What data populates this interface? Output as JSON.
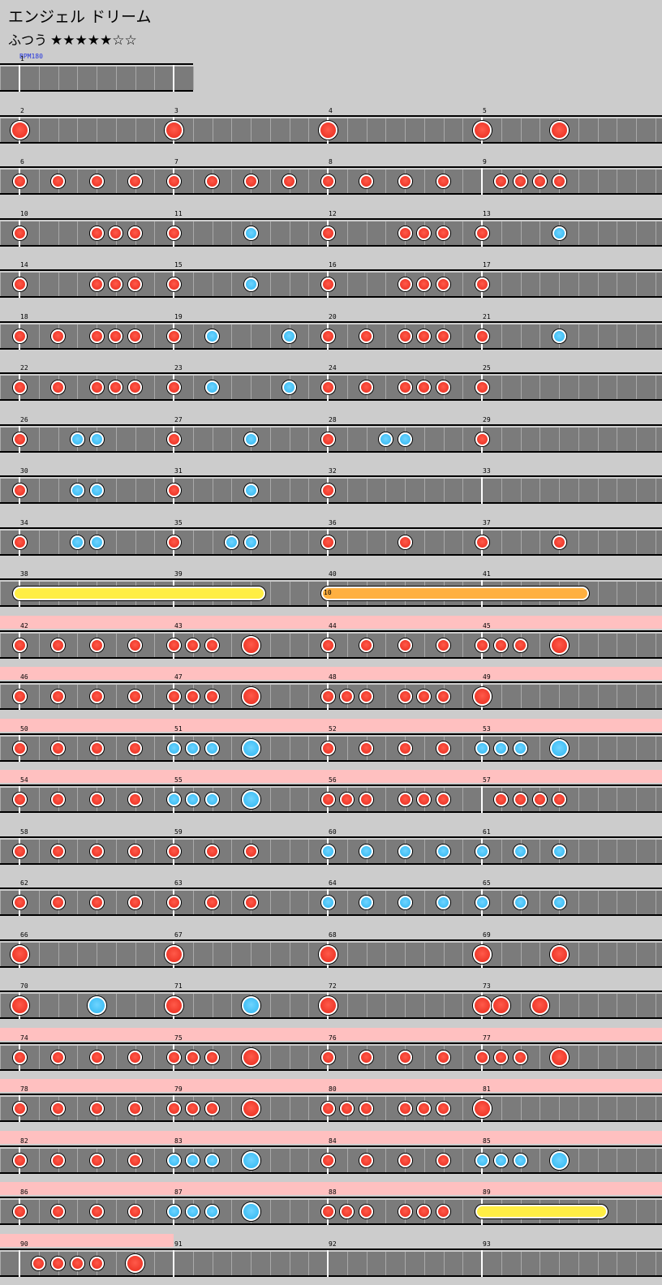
{
  "song": {
    "title": "エンジェル ドリーム",
    "difficulty": "ふつう",
    "stars": "★★★★★☆☆"
  },
  "bpm_label": "BPM180",
  "colors": {
    "don": "#e82a1c",
    "ka": "#2eb6f0",
    "roll": "#ffee44",
    "balloon": "#ffb040",
    "gogo": "#ffc0c0",
    "lane": "#7b7b7b"
  },
  "rows": [
    {
      "first_measure": 1,
      "measures": 1,
      "gogo": 0,
      "notes": []
    },
    {
      "first_measure": 2,
      "measures": 4,
      "gogo": 0,
      "notes": [
        [
          0,
          "D"
        ],
        [
          8,
          "D"
        ],
        [
          16,
          "D"
        ],
        [
          24,
          "D"
        ],
        [
          28,
          "D"
        ]
      ]
    },
    {
      "first_measure": 6,
      "measures": 4,
      "gogo": 0,
      "notes": [
        [
          0,
          "d"
        ],
        [
          2,
          "d"
        ],
        [
          4,
          "d"
        ],
        [
          6,
          "d"
        ],
        [
          8,
          "d"
        ],
        [
          10,
          "d"
        ],
        [
          12,
          "d"
        ],
        [
          14,
          "d"
        ],
        [
          16,
          "d"
        ],
        [
          18,
          "d"
        ],
        [
          20,
          "d"
        ],
        [
          22,
          "d"
        ],
        [
          25,
          "d"
        ],
        [
          26,
          "d"
        ],
        [
          27,
          "d"
        ],
        [
          28,
          "d"
        ]
      ]
    },
    {
      "first_measure": 10,
      "measures": 4,
      "gogo": 0,
      "notes": [
        [
          0,
          "d"
        ],
        [
          4,
          "d"
        ],
        [
          5,
          "d"
        ],
        [
          6,
          "d"
        ],
        [
          8,
          "d"
        ],
        [
          12,
          "k"
        ],
        [
          16,
          "d"
        ],
        [
          20,
          "d"
        ],
        [
          21,
          "d"
        ],
        [
          22,
          "d"
        ],
        [
          24,
          "d"
        ],
        [
          28,
          "k"
        ]
      ]
    },
    {
      "first_measure": 14,
      "measures": 4,
      "gogo": 0,
      "notes": [
        [
          0,
          "d"
        ],
        [
          4,
          "d"
        ],
        [
          5,
          "d"
        ],
        [
          6,
          "d"
        ],
        [
          8,
          "d"
        ],
        [
          12,
          "k"
        ],
        [
          16,
          "d"
        ],
        [
          20,
          "d"
        ],
        [
          21,
          "d"
        ],
        [
          22,
          "d"
        ],
        [
          24,
          "d"
        ]
      ]
    },
    {
      "first_measure": 18,
      "measures": 4,
      "gogo": 0,
      "notes": [
        [
          0,
          "d"
        ],
        [
          2,
          "d"
        ],
        [
          4,
          "d"
        ],
        [
          5,
          "d"
        ],
        [
          6,
          "d"
        ],
        [
          8,
          "d"
        ],
        [
          10,
          "k"
        ],
        [
          14,
          "k"
        ],
        [
          16,
          "d"
        ],
        [
          18,
          "d"
        ],
        [
          20,
          "d"
        ],
        [
          21,
          "d"
        ],
        [
          22,
          "d"
        ],
        [
          24,
          "d"
        ],
        [
          28,
          "k"
        ]
      ]
    },
    {
      "first_measure": 22,
      "measures": 4,
      "gogo": 0,
      "notes": [
        [
          0,
          "d"
        ],
        [
          2,
          "d"
        ],
        [
          4,
          "d"
        ],
        [
          5,
          "d"
        ],
        [
          6,
          "d"
        ],
        [
          8,
          "d"
        ],
        [
          10,
          "k"
        ],
        [
          14,
          "k"
        ],
        [
          16,
          "d"
        ],
        [
          18,
          "d"
        ],
        [
          20,
          "d"
        ],
        [
          21,
          "d"
        ],
        [
          22,
          "d"
        ],
        [
          24,
          "d"
        ]
      ]
    },
    {
      "first_measure": 26,
      "measures": 4,
      "gogo": 0,
      "notes": [
        [
          0,
          "d"
        ],
        [
          3,
          "k"
        ],
        [
          4,
          "k"
        ],
        [
          8,
          "d"
        ],
        [
          12,
          "k"
        ],
        [
          16,
          "d"
        ],
        [
          19,
          "k"
        ],
        [
          20,
          "k"
        ],
        [
          24,
          "d"
        ]
      ]
    },
    {
      "first_measure": 30,
      "measures": 4,
      "gogo": 0,
      "notes": [
        [
          0,
          "d"
        ],
        [
          3,
          "k"
        ],
        [
          4,
          "k"
        ],
        [
          8,
          "d"
        ],
        [
          12,
          "k"
        ],
        [
          16,
          "d"
        ]
      ]
    },
    {
      "first_measure": 34,
      "measures": 4,
      "gogo": 0,
      "notes": [
        [
          0,
          "d"
        ],
        [
          3,
          "k"
        ],
        [
          4,
          "k"
        ],
        [
          8,
          "d"
        ],
        [
          11,
          "k"
        ],
        [
          12,
          "k"
        ],
        [
          16,
          "d"
        ],
        [
          20,
          "d"
        ],
        [
          24,
          "d"
        ],
        [
          28,
          "d"
        ]
      ]
    },
    {
      "first_measure": 38,
      "measures": 4,
      "gogo": 0,
      "notes": [],
      "rolls": [
        [
          0,
          12.4,
          "y"
        ],
        [
          16,
          29.2,
          "o"
        ]
      ],
      "balloon_count": "10"
    },
    {
      "first_measure": 42,
      "measures": 4,
      "gogo": 4,
      "notes": [
        [
          0,
          "d"
        ],
        [
          2,
          "d"
        ],
        [
          4,
          "d"
        ],
        [
          6,
          "d"
        ],
        [
          8,
          "d"
        ],
        [
          9,
          "d"
        ],
        [
          10,
          "d"
        ],
        [
          12,
          "D"
        ],
        [
          16,
          "d"
        ],
        [
          18,
          "d"
        ],
        [
          20,
          "d"
        ],
        [
          22,
          "d"
        ],
        [
          24,
          "d"
        ],
        [
          25,
          "d"
        ],
        [
          26,
          "d"
        ],
        [
          28,
          "D"
        ]
      ]
    },
    {
      "first_measure": 46,
      "measures": 4,
      "gogo": 4,
      "notes": [
        [
          0,
          "d"
        ],
        [
          2,
          "d"
        ],
        [
          4,
          "d"
        ],
        [
          6,
          "d"
        ],
        [
          8,
          "d"
        ],
        [
          9,
          "d"
        ],
        [
          10,
          "d"
        ],
        [
          12,
          "D"
        ],
        [
          16,
          "d"
        ],
        [
          17,
          "d"
        ],
        [
          18,
          "d"
        ],
        [
          20,
          "d"
        ],
        [
          21,
          "d"
        ],
        [
          22,
          "d"
        ],
        [
          24,
          "D"
        ]
      ]
    },
    {
      "first_measure": 50,
      "measures": 4,
      "gogo": 4,
      "notes": [
        [
          0,
          "d"
        ],
        [
          2,
          "d"
        ],
        [
          4,
          "d"
        ],
        [
          6,
          "d"
        ],
        [
          8,
          "k"
        ],
        [
          9,
          "k"
        ],
        [
          10,
          "k"
        ],
        [
          12,
          "K"
        ],
        [
          16,
          "d"
        ],
        [
          18,
          "d"
        ],
        [
          20,
          "d"
        ],
        [
          22,
          "d"
        ],
        [
          24,
          "k"
        ],
        [
          25,
          "k"
        ],
        [
          26,
          "k"
        ],
        [
          28,
          "K"
        ]
      ]
    },
    {
      "first_measure": 54,
      "measures": 4,
      "gogo": 4,
      "notes": [
        [
          0,
          "d"
        ],
        [
          2,
          "d"
        ],
        [
          4,
          "d"
        ],
        [
          6,
          "d"
        ],
        [
          8,
          "k"
        ],
        [
          9,
          "k"
        ],
        [
          10,
          "k"
        ],
        [
          12,
          "K"
        ],
        [
          16,
          "d"
        ],
        [
          17,
          "d"
        ],
        [
          18,
          "d"
        ],
        [
          20,
          "d"
        ],
        [
          21,
          "d"
        ],
        [
          22,
          "d"
        ],
        [
          25,
          "d"
        ],
        [
          26,
          "d"
        ],
        [
          27,
          "d"
        ],
        [
          28,
          "d"
        ]
      ]
    },
    {
      "first_measure": 58,
      "measures": 4,
      "gogo": 0,
      "notes": [
        [
          0,
          "d"
        ],
        [
          2,
          "d"
        ],
        [
          4,
          "d"
        ],
        [
          6,
          "d"
        ],
        [
          8,
          "d"
        ],
        [
          10,
          "d"
        ],
        [
          12,
          "d"
        ],
        [
          16,
          "k"
        ],
        [
          18,
          "k"
        ],
        [
          20,
          "k"
        ],
        [
          22,
          "k"
        ],
        [
          24,
          "k"
        ],
        [
          26,
          "k"
        ],
        [
          28,
          "k"
        ]
      ]
    },
    {
      "first_measure": 62,
      "measures": 4,
      "gogo": 0,
      "notes": [
        [
          0,
          "d"
        ],
        [
          2,
          "d"
        ],
        [
          4,
          "d"
        ],
        [
          6,
          "d"
        ],
        [
          8,
          "d"
        ],
        [
          10,
          "d"
        ],
        [
          12,
          "d"
        ],
        [
          16,
          "k"
        ],
        [
          18,
          "k"
        ],
        [
          20,
          "k"
        ],
        [
          22,
          "k"
        ],
        [
          24,
          "k"
        ],
        [
          26,
          "k"
        ],
        [
          28,
          "k"
        ]
      ]
    },
    {
      "first_measure": 66,
      "measures": 4,
      "gogo": 0,
      "notes": [
        [
          0,
          "D"
        ],
        [
          8,
          "D"
        ],
        [
          16,
          "D"
        ],
        [
          24,
          "D"
        ],
        [
          28,
          "D"
        ]
      ]
    },
    {
      "first_measure": 70,
      "measures": 4,
      "gogo": 0,
      "notes": [
        [
          0,
          "D"
        ],
        [
          4,
          "K"
        ],
        [
          8,
          "D"
        ],
        [
          12,
          "K"
        ],
        [
          16,
          "D"
        ],
        [
          24,
          "D"
        ],
        [
          25,
          "D"
        ],
        [
          27,
          "D"
        ]
      ]
    },
    {
      "first_measure": 74,
      "measures": 4,
      "gogo": 4,
      "notes": [
        [
          0,
          "d"
        ],
        [
          2,
          "d"
        ],
        [
          4,
          "d"
        ],
        [
          6,
          "d"
        ],
        [
          8,
          "d"
        ],
        [
          9,
          "d"
        ],
        [
          10,
          "d"
        ],
        [
          12,
          "D"
        ],
        [
          16,
          "d"
        ],
        [
          18,
          "d"
        ],
        [
          20,
          "d"
        ],
        [
          22,
          "d"
        ],
        [
          24,
          "d"
        ],
        [
          25,
          "d"
        ],
        [
          26,
          "d"
        ],
        [
          28,
          "D"
        ]
      ]
    },
    {
      "first_measure": 78,
      "measures": 4,
      "gogo": 4,
      "notes": [
        [
          0,
          "d"
        ],
        [
          2,
          "d"
        ],
        [
          4,
          "d"
        ],
        [
          6,
          "d"
        ],
        [
          8,
          "d"
        ],
        [
          9,
          "d"
        ],
        [
          10,
          "d"
        ],
        [
          12,
          "D"
        ],
        [
          16,
          "d"
        ],
        [
          17,
          "d"
        ],
        [
          18,
          "d"
        ],
        [
          20,
          "d"
        ],
        [
          21,
          "d"
        ],
        [
          22,
          "d"
        ],
        [
          24,
          "D"
        ]
      ]
    },
    {
      "first_measure": 82,
      "measures": 4,
      "gogo": 4,
      "notes": [
        [
          0,
          "d"
        ],
        [
          2,
          "d"
        ],
        [
          4,
          "d"
        ],
        [
          6,
          "d"
        ],
        [
          8,
          "k"
        ],
        [
          9,
          "k"
        ],
        [
          10,
          "k"
        ],
        [
          12,
          "K"
        ],
        [
          16,
          "d"
        ],
        [
          18,
          "d"
        ],
        [
          20,
          "d"
        ],
        [
          22,
          "d"
        ],
        [
          24,
          "k"
        ],
        [
          25,
          "k"
        ],
        [
          26,
          "k"
        ],
        [
          28,
          "K"
        ]
      ]
    },
    {
      "first_measure": 86,
      "measures": 4,
      "gogo": 4,
      "notes": [
        [
          0,
          "d"
        ],
        [
          2,
          "d"
        ],
        [
          4,
          "d"
        ],
        [
          6,
          "d"
        ],
        [
          8,
          "k"
        ],
        [
          9,
          "k"
        ],
        [
          10,
          "k"
        ],
        [
          12,
          "K"
        ],
        [
          16,
          "d"
        ],
        [
          17,
          "d"
        ],
        [
          18,
          "d"
        ],
        [
          20,
          "d"
        ],
        [
          21,
          "d"
        ],
        [
          22,
          "d"
        ]
      ],
      "rolls": [
        [
          24,
          30.2,
          "y"
        ]
      ]
    },
    {
      "first_measure": 90,
      "measures": 4,
      "gogo": 1,
      "notes": [
        [
          1,
          "d"
        ],
        [
          2,
          "d"
        ],
        [
          3,
          "d"
        ],
        [
          4,
          "d"
        ],
        [
          6,
          "D"
        ]
      ]
    }
  ]
}
